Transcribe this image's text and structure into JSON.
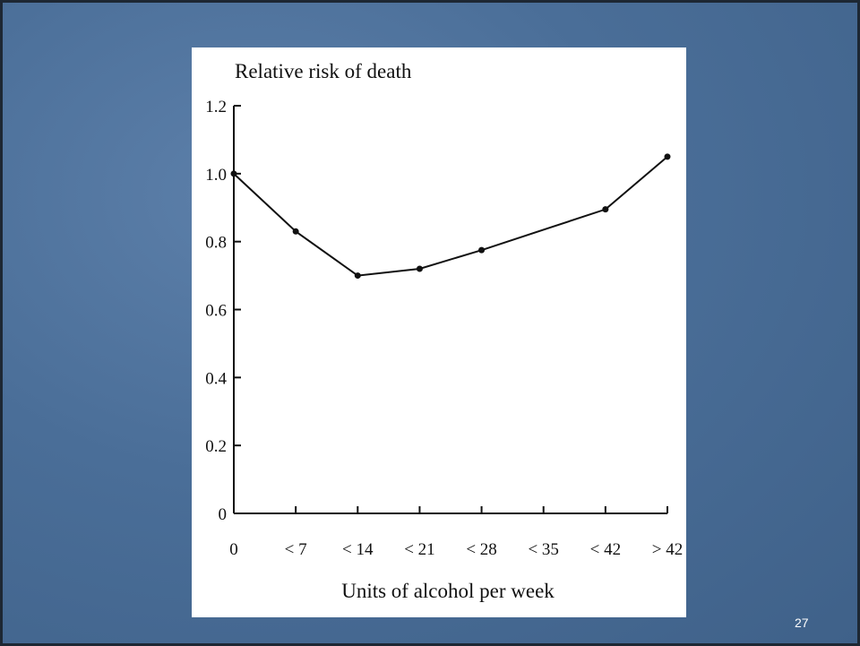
{
  "chart_data": {
    "type": "line",
    "y_label": "Relative risk of death",
    "x_label": "Units of alcohol per week",
    "x": [
      0,
      7,
      14,
      21,
      28,
      42,
      49
    ],
    "series": [
      {
        "name": "Relative risk",
        "color": "#111111",
        "values": [
          1,
          0.83,
          0.7,
          0.72,
          0.775,
          0.895,
          1.05
        ]
      }
    ],
    "xlim": [
      0,
      49
    ],
    "xticks": [
      0,
      {
        "value": 7,
        "label": "< 7"
      },
      {
        "value": 14,
        "label": "< 14"
      },
      {
        "value": 21,
        "label": "< 21"
      },
      {
        "value": 28,
        "label": "< 28"
      },
      {
        "value": 35,
        "label": "< 35"
      },
      {
        "value": 42,
        "label": "< 42"
      },
      {
        "value": 49,
        "label": "> 42"
      }
    ],
    "ylim": [
      0,
      1.2
    ],
    "yticks": [
      0,
      0.2,
      0.4,
      0.6,
      0.8,
      {
        "value": 1,
        "label": "1.0"
      },
      1.2
    ]
  },
  "slide_number": "27"
}
